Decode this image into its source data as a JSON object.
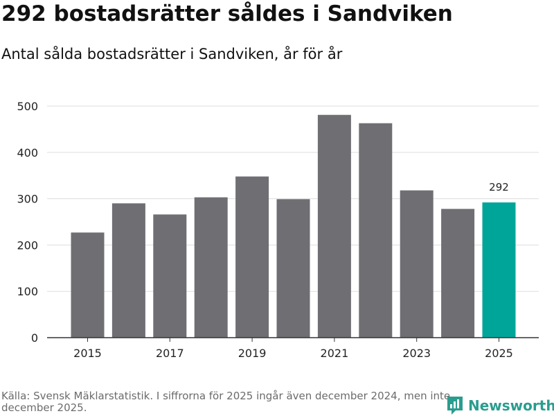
{
  "header": {
    "title": "292 bostadsrätter såldes i Sandviken",
    "subtitle": "Antal sålda bostadsrätter i Sandviken, år för år"
  },
  "footer": {
    "source": "Källa: Svensk Mäklarstatistik. I siffrorna för 2025 ingår även december 2024, men inte december 2025.",
    "brand": "Newsworthy"
  },
  "colors": {
    "bar": "#6f6e73",
    "highlight": "#00a59a",
    "brand": "#2a9d8f"
  },
  "chart_data": {
    "type": "bar",
    "title": "292 bostadsrätter såldes i Sandviken",
    "subtitle": "Antal sålda bostadsrätter i Sandviken, år för år",
    "xlabel": "",
    "ylabel": "",
    "categories": [
      "2015",
      "2016",
      "2017",
      "2018",
      "2019",
      "2020",
      "2021",
      "2022",
      "2023",
      "2024",
      "2025"
    ],
    "values": [
      227,
      290,
      266,
      303,
      348,
      299,
      481,
      463,
      318,
      278,
      292
    ],
    "x_tick_labels": [
      "2015",
      "2017",
      "2019",
      "2021",
      "2023",
      "2025"
    ],
    "y_ticks": [
      0,
      100,
      200,
      300,
      400,
      500
    ],
    "ylim": [
      0,
      500
    ],
    "grid": true,
    "highlight_category": "2025",
    "data_labels": [
      {
        "category": "2025",
        "label": "292"
      }
    ]
  }
}
